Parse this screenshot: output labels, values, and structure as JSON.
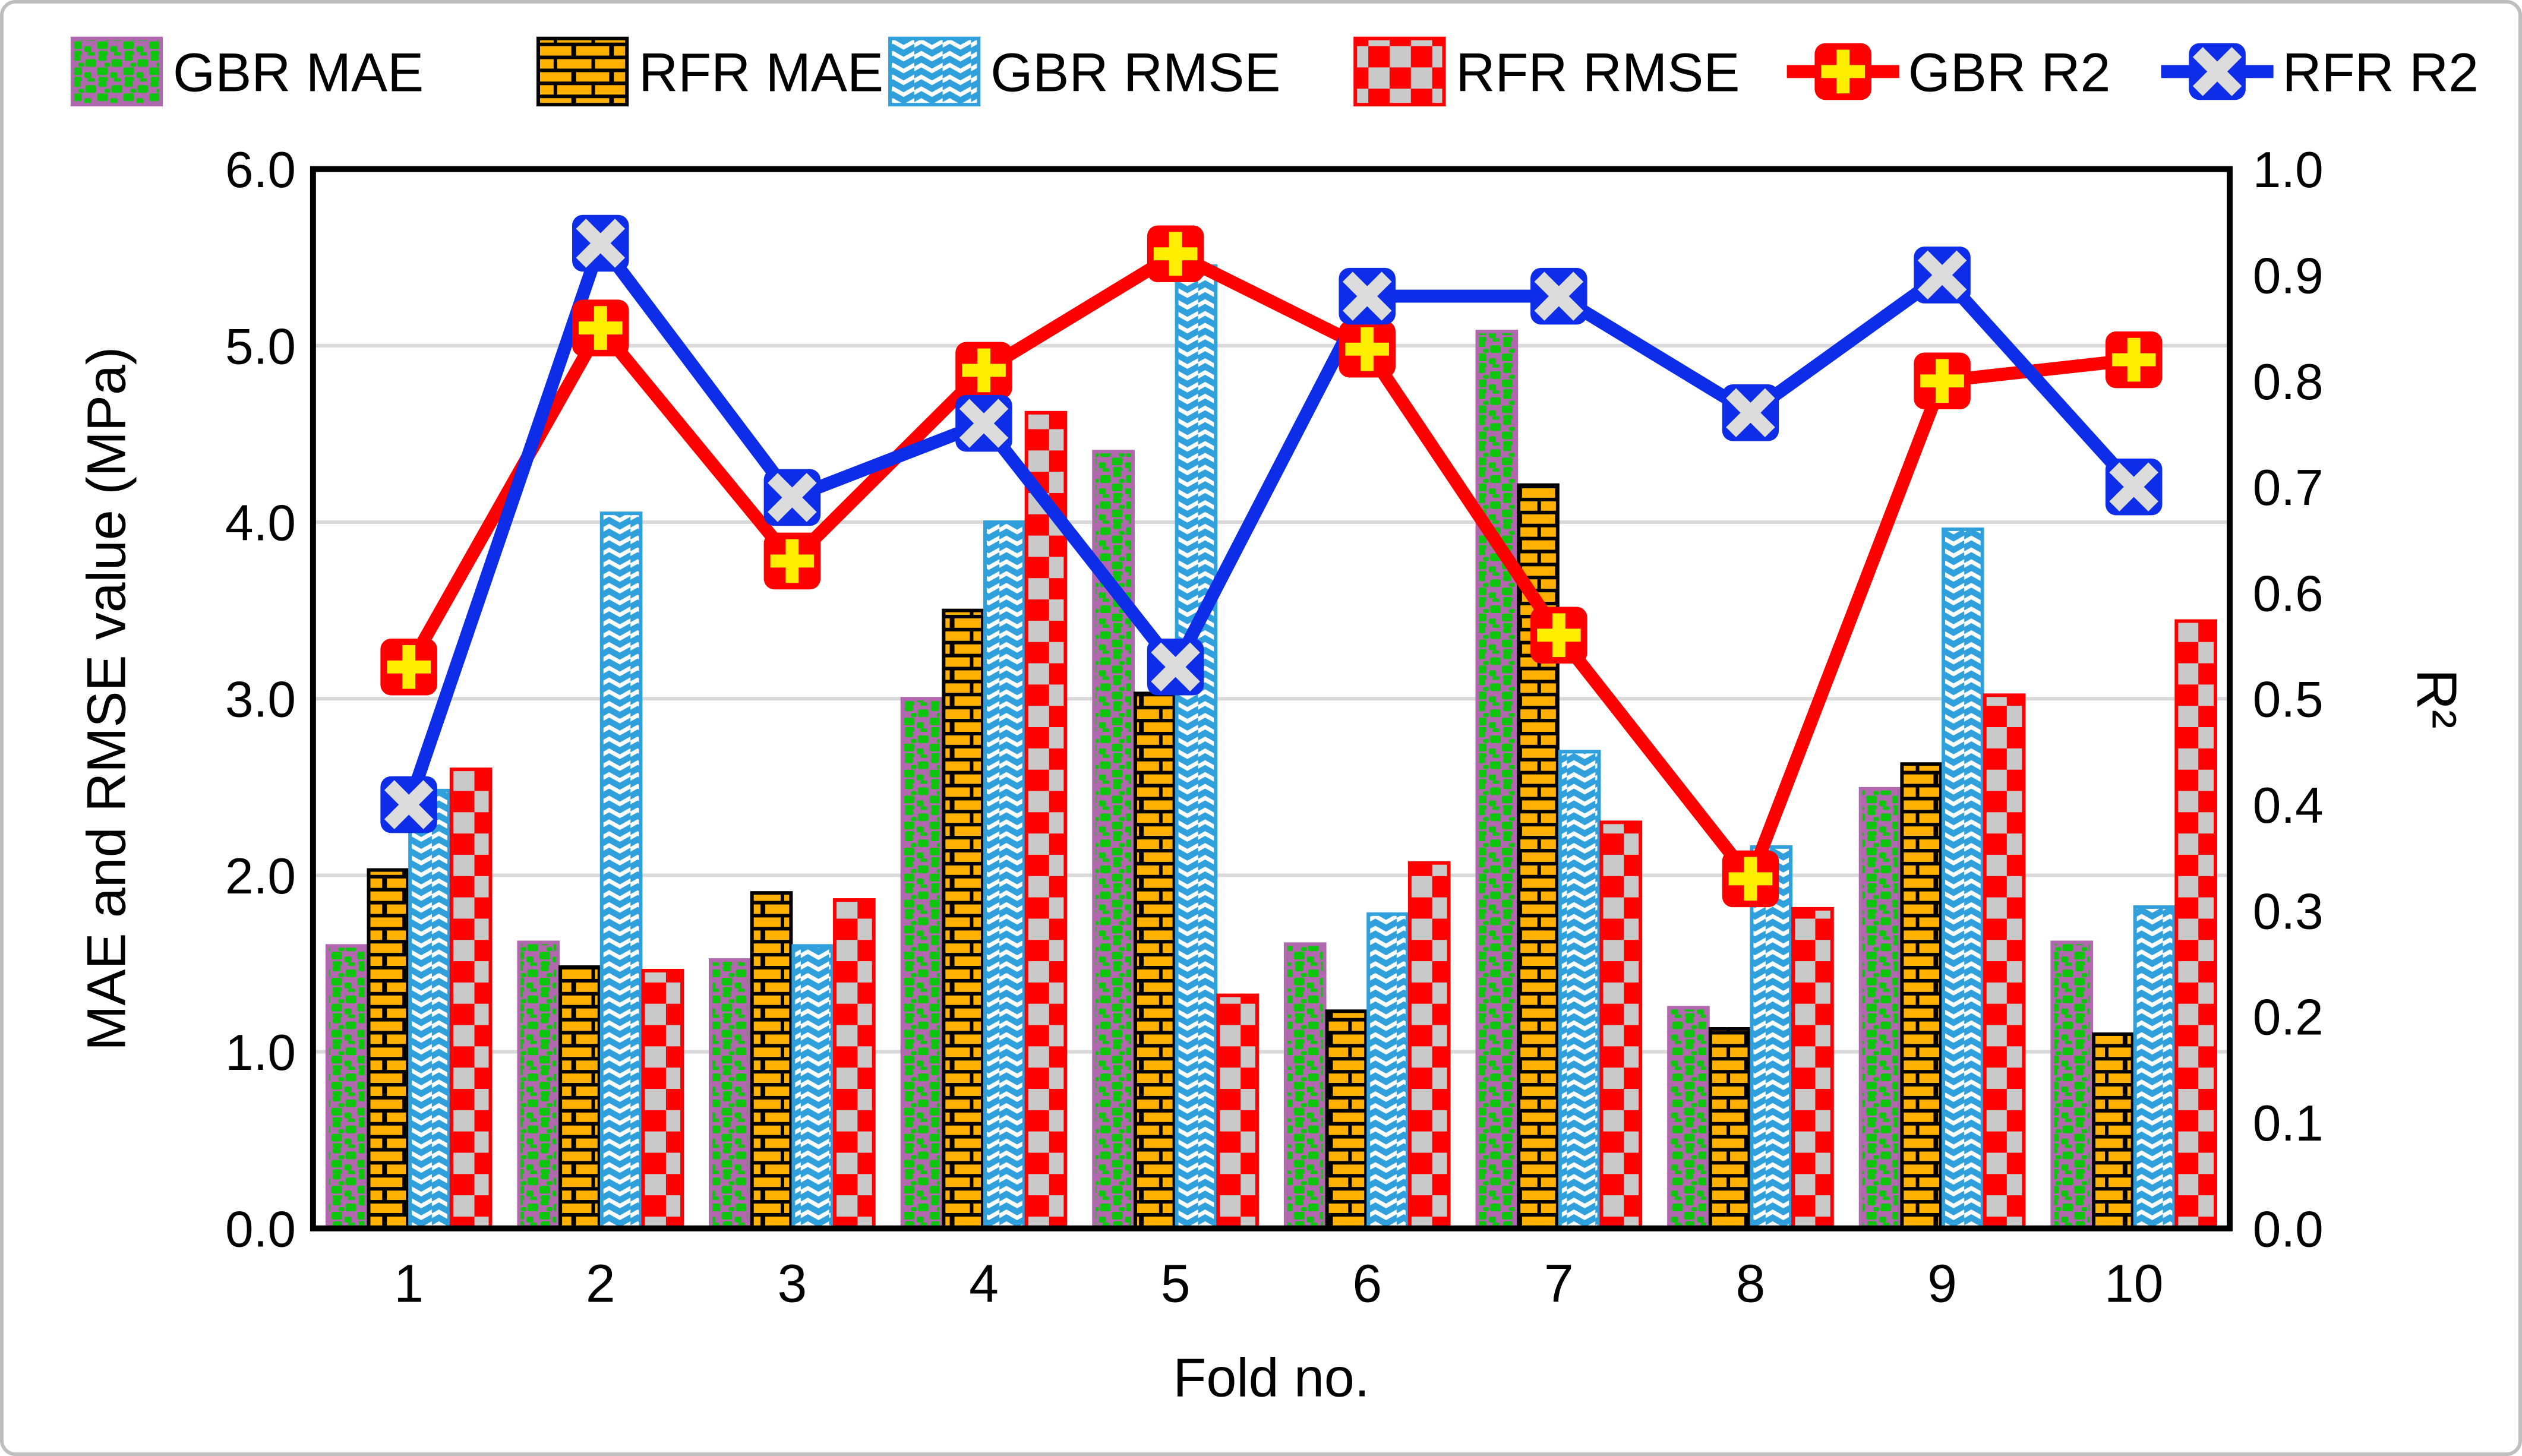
{
  "figure": {
    "background": "#FFFFFF",
    "border_color": "#BFBFBF"
  },
  "chart_data": {
    "type": "bar+line",
    "title": "",
    "xlabel": "Fold no.",
    "ylabel_left": "MAE and RMSE value (MPa)",
    "ylabel_right": "R²",
    "ylim_left": [
      0.0,
      6.0
    ],
    "ylim_right": [
      0.0,
      1.0
    ],
    "grid": "horizontal gridlines at left-axis 1.0–5.0",
    "gridline_color": "#D9D9D9",
    "frame_color": "#000000",
    "legend_position": "top",
    "categories": [
      "1",
      "2",
      "3",
      "4",
      "5",
      "6",
      "7",
      "8",
      "9",
      "10"
    ],
    "x_tick_labels": [
      "1",
      "2",
      "3",
      "4",
      "5",
      "6",
      "7",
      "8",
      "9",
      "10"
    ],
    "y_left_tick_labels": [
      "0.0",
      "1.0",
      "2.0",
      "3.0",
      "4.0",
      "5.0",
      "6.0"
    ],
    "y_right_tick_labels": [
      "0.0",
      "0.1",
      "0.2",
      "0.3",
      "0.4",
      "0.5",
      "0.6",
      "0.7",
      "0.8",
      "0.9",
      "1.0"
    ],
    "bar_series": [
      {
        "name": "GBR MAE",
        "axis": "left",
        "pattern": "green-confetti-on-purple",
        "fill": "#B168AE",
        "accent": "#0DC50D",
        "stroke": "#B168AE",
        "values": [
          1.6,
          1.62,
          1.52,
          3.0,
          4.4,
          1.61,
          5.08,
          1.25,
          2.49,
          1.62
        ]
      },
      {
        "name": "RFR MAE",
        "axis": "left",
        "pattern": "black-bricks-on-orange",
        "fill": "#FFB000",
        "accent": "#000000",
        "stroke": "#000000",
        "values": [
          2.03,
          1.48,
          1.9,
          3.5,
          3.03,
          1.23,
          4.21,
          1.13,
          2.63,
          1.1
        ]
      },
      {
        "name": "GBR RMSE",
        "axis": "left",
        "pattern": "white-chevrons-on-blue",
        "fill": "#2FA0DC",
        "accent": "#FFFFFF",
        "stroke": "#2FA0DC",
        "values": [
          2.48,
          4.05,
          1.6,
          4.0,
          5.45,
          1.78,
          2.7,
          2.16,
          3.96,
          1.82
        ]
      },
      {
        "name": "RFR RMSE",
        "axis": "left",
        "pattern": "silver-checker-on-red",
        "fill": "#FF0000",
        "accent": "#C9C9C9",
        "stroke": "#FF0000",
        "values": [
          2.6,
          1.46,
          1.86,
          4.62,
          1.32,
          2.07,
          2.3,
          1.81,
          3.02,
          3.44
        ]
      }
    ],
    "line_series": [
      {
        "name": "GBR R2",
        "axis": "right",
        "color": "#FF0000",
        "marker": "yellow-plus-on-red-square",
        "marker_fill": "#FF0000",
        "marker_glyph_color": "#FFEE00",
        "values": [
          0.53,
          0.85,
          0.63,
          0.81,
          0.92,
          0.83,
          0.56,
          0.33,
          0.8,
          0.82
        ]
      },
      {
        "name": "RFR R2",
        "axis": "right",
        "color": "#0D2DE8",
        "marker": "white-x-on-blue-square",
        "marker_fill": "#0D2DE8",
        "marker_glyph_color": "#DCDCDC",
        "values": [
          0.4,
          0.93,
          0.69,
          0.76,
          0.53,
          0.88,
          0.88,
          0.77,
          0.9,
          0.7
        ]
      }
    ]
  }
}
